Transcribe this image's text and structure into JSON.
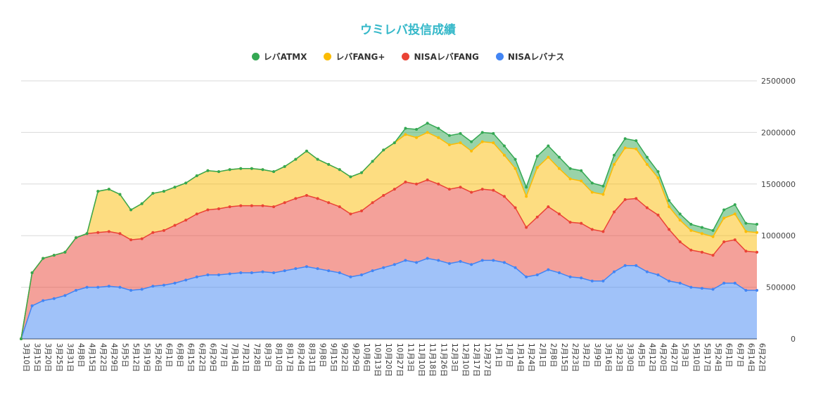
{
  "chart_data": {
    "type": "area",
    "stacked": true,
    "title": "ウミレバ投信成績",
    "legend_position": "top",
    "grid": true,
    "ylim": [
      0,
      2500000
    ],
    "yticks": [
      "0",
      "500000",
      "1000000",
      "1500000",
      "2000000",
      "2500000"
    ],
    "x": [
      "3月10日",
      "3月15日",
      "3月20日",
      "3月25日",
      "3月31日",
      "4月8日",
      "4月15日",
      "4月22日",
      "4月29日",
      "5月5日",
      "5月12日",
      "5月19日",
      "5月26日",
      "6月1日",
      "6月8日",
      "6月15日",
      "6月22日",
      "6月29日",
      "7月7日",
      "7月14日",
      "7月21日",
      "7月28日",
      "8月3日",
      "8月10日",
      "8月17日",
      "8月24日",
      "8月31日",
      "9月8日",
      "9月15日",
      "9月22日",
      "9月29日",
      "10月6日",
      "10月13日",
      "10月20日",
      "10月27日",
      "11月3日",
      "11月10日",
      "11月18日",
      "11月26日",
      "12月3日",
      "12月10日",
      "12月17日",
      "12月27日",
      "1月1日",
      "1月7日",
      "1月14日",
      "1月24日",
      "2月1日",
      "2月8日",
      "2月15日",
      "2月23日",
      "3月2日",
      "3月9日",
      "3月16日",
      "3月23日",
      "3月30日",
      "4月5日",
      "4月12日",
      "4月20日",
      "4月27日",
      "5月3日",
      "5月10日",
      "5月17日",
      "5月24日",
      "6月1日",
      "6月7日",
      "6月14日",
      "6月22日"
    ],
    "series": [
      {
        "name": "NISAレバナス",
        "color": "#4285f4",
        "values": [
          0,
          320000,
          370000,
          390000,
          420000,
          470000,
          500000,
          500000,
          510000,
          500000,
          470000,
          480000,
          510000,
          520000,
          540000,
          570000,
          600000,
          620000,
          620000,
          630000,
          640000,
          640000,
          650000,
          640000,
          660000,
          680000,
          700000,
          680000,
          660000,
          640000,
          600000,
          620000,
          660000,
          690000,
          720000,
          760000,
          740000,
          780000,
          760000,
          730000,
          750000,
          720000,
          760000,
          760000,
          740000,
          690000,
          600000,
          620000,
          670000,
          640000,
          600000,
          590000,
          560000,
          560000,
          650000,
          710000,
          710000,
          650000,
          620000,
          560000,
          540000,
          500000,
          490000,
          480000,
          540000,
          540000,
          470000,
          470000
        ]
      },
      {
        "name": "NISAレバFANG",
        "color": "#ea4335",
        "values": [
          0,
          320000,
          410000,
          420000,
          420000,
          510000,
          520000,
          530000,
          530000,
          520000,
          490000,
          490000,
          520000,
          530000,
          560000,
          580000,
          610000,
          630000,
          640000,
          650000,
          650000,
          650000,
          640000,
          640000,
          660000,
          680000,
          690000,
          680000,
          660000,
          640000,
          610000,
          620000,
          660000,
          700000,
          730000,
          760000,
          760000,
          760000,
          740000,
          720000,
          720000,
          700000,
          690000,
          680000,
          640000,
          580000,
          480000,
          560000,
          610000,
          570000,
          530000,
          530000,
          500000,
          480000,
          580000,
          640000,
          650000,
          620000,
          580000,
          500000,
          400000,
          360000,
          350000,
          330000,
          400000,
          420000,
          380000,
          370000
        ]
      },
      {
        "name": "レバFANG+",
        "color": "#fbbc04",
        "values": [
          0,
          0,
          0,
          0,
          0,
          0,
          0,
          400000,
          410000,
          380000,
          290000,
          340000,
          380000,
          380000,
          370000,
          360000,
          370000,
          380000,
          360000,
          360000,
          360000,
          360000,
          350000,
          340000,
          350000,
          380000,
          430000,
          380000,
          370000,
          360000,
          360000,
          370000,
          400000,
          440000,
          450000,
          460000,
          450000,
          460000,
          450000,
          430000,
          430000,
          400000,
          460000,
          460000,
          400000,
          380000,
          300000,
          480000,
          480000,
          440000,
          420000,
          410000,
          360000,
          360000,
          460000,
          500000,
          480000,
          420000,
          360000,
          220000,
          210000,
          190000,
          180000,
          180000,
          230000,
          250000,
          190000,
          190000
        ]
      },
      {
        "name": "レバATMX",
        "color": "#34a853",
        "values": [
          0,
          0,
          0,
          0,
          0,
          0,
          0,
          0,
          0,
          0,
          0,
          0,
          0,
          0,
          0,
          0,
          0,
          0,
          0,
          0,
          0,
          0,
          0,
          0,
          0,
          0,
          0,
          0,
          0,
          0,
          0,
          0,
          0,
          0,
          0,
          60000,
          80000,
          90000,
          90000,
          90000,
          90000,
          90000,
          90000,
          90000,
          90000,
          90000,
          90000,
          110000,
          110000,
          110000,
          100000,
          100000,
          90000,
          80000,
          90000,
          90000,
          80000,
          70000,
          60000,
          60000,
          60000,
          60000,
          60000,
          60000,
          80000,
          90000,
          80000,
          80000
        ]
      }
    ]
  }
}
